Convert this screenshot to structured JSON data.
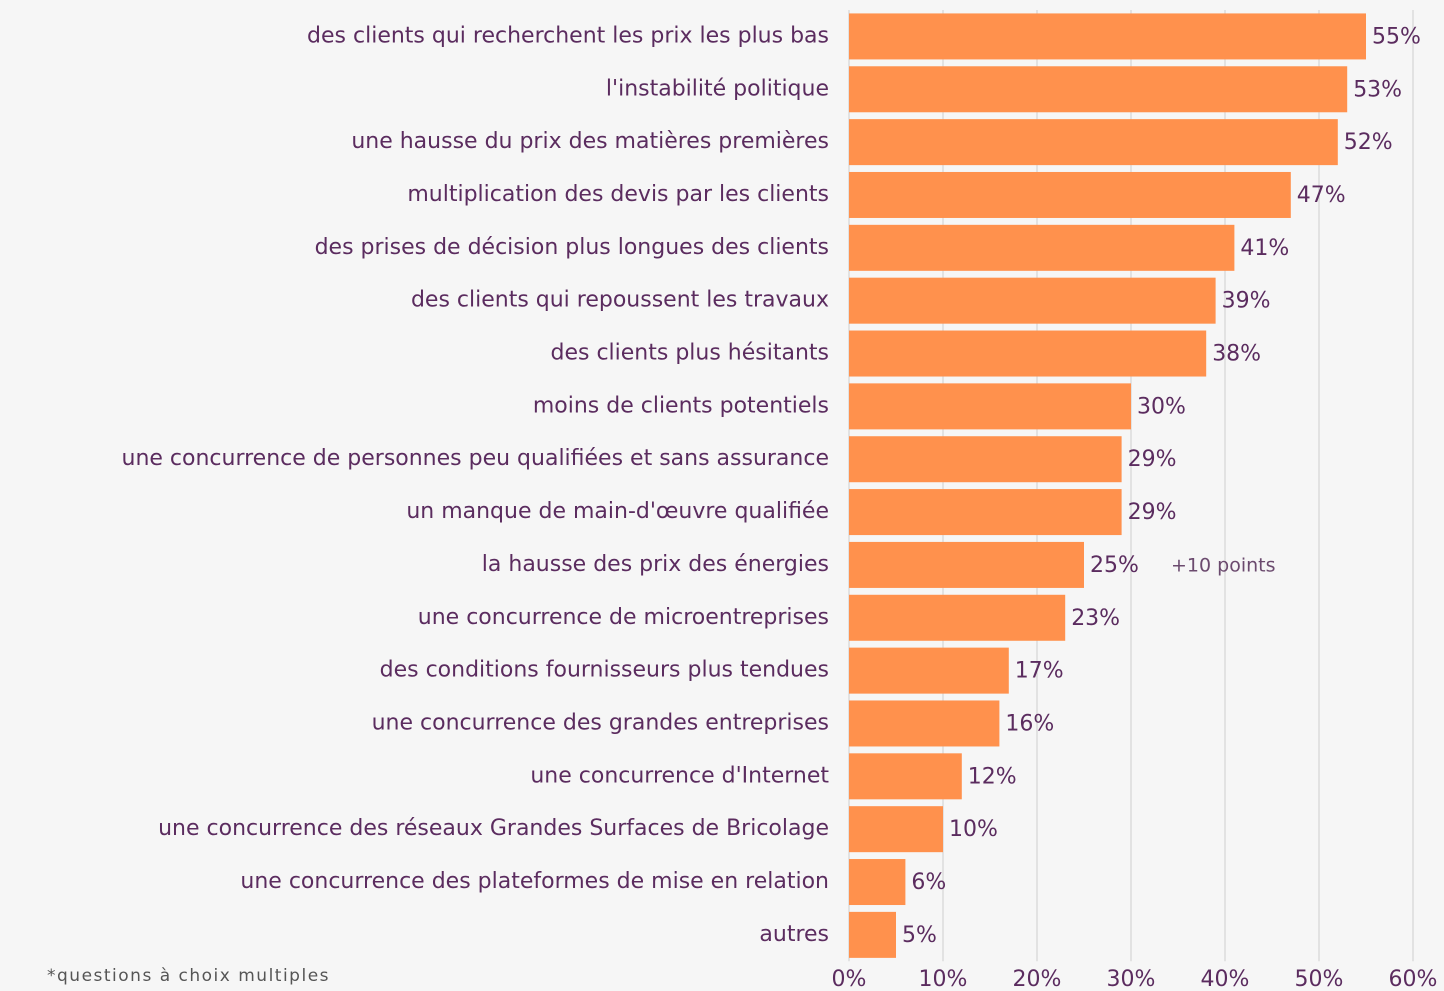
{
  "chart_data": {
    "type": "bar",
    "orientation": "horizontal",
    "categories": [
      "des clients qui recherchent les prix les plus bas",
      "l'instabilité politique",
      "une hausse du prix des matières premières",
      "multiplication des devis par les clients",
      "des prises de décision plus longues des clients",
      "des clients qui repoussent les travaux",
      "des clients plus hésitants",
      "moins de clients potentiels",
      "une concurrence de personnes peu qualifiées et sans assurance",
      "un manque de main-d'œuvre qualifiée",
      "la hausse des prix des énergies",
      "une concurrence de microentreprises",
      "des conditions fournisseurs plus tendues",
      "une concurrence des grandes entreprises",
      "une concurrence d'Internet",
      "une concurrence des réseaux Grandes Surfaces de Bricolage",
      "une concurrence des plateformes de mise en relation",
      "autres"
    ],
    "values": [
      55,
      53,
      52,
      47,
      41,
      39,
      38,
      30,
      29,
      29,
      25,
      23,
      17,
      16,
      12,
      10,
      6,
      5
    ],
    "value_labels": [
      "55%",
      "53%",
      "52%",
      "47%",
      "41%",
      "39%",
      "38%",
      "30%",
      "29%",
      "29%",
      "25%",
      "23%",
      "17%",
      "16%",
      "12%",
      "10%",
      "6%",
      "5%"
    ],
    "color": "#ff914d",
    "xlim": [
      0,
      60
    ],
    "xticks": [
      {
        "value": 0,
        "label": "0%"
      },
      {
        "value": 10,
        "label": "10%"
      },
      {
        "value": 20,
        "label": "20%"
      },
      {
        "value": 30,
        "label": "30%"
      },
      {
        "value": 40,
        "label": "40%"
      },
      {
        "value": 50,
        "label": "50%"
      },
      {
        "value": 60,
        "label": "60%"
      }
    ],
    "grid": true,
    "annotation": "+10 points",
    "footnote": "*questions à choix multiples"
  }
}
